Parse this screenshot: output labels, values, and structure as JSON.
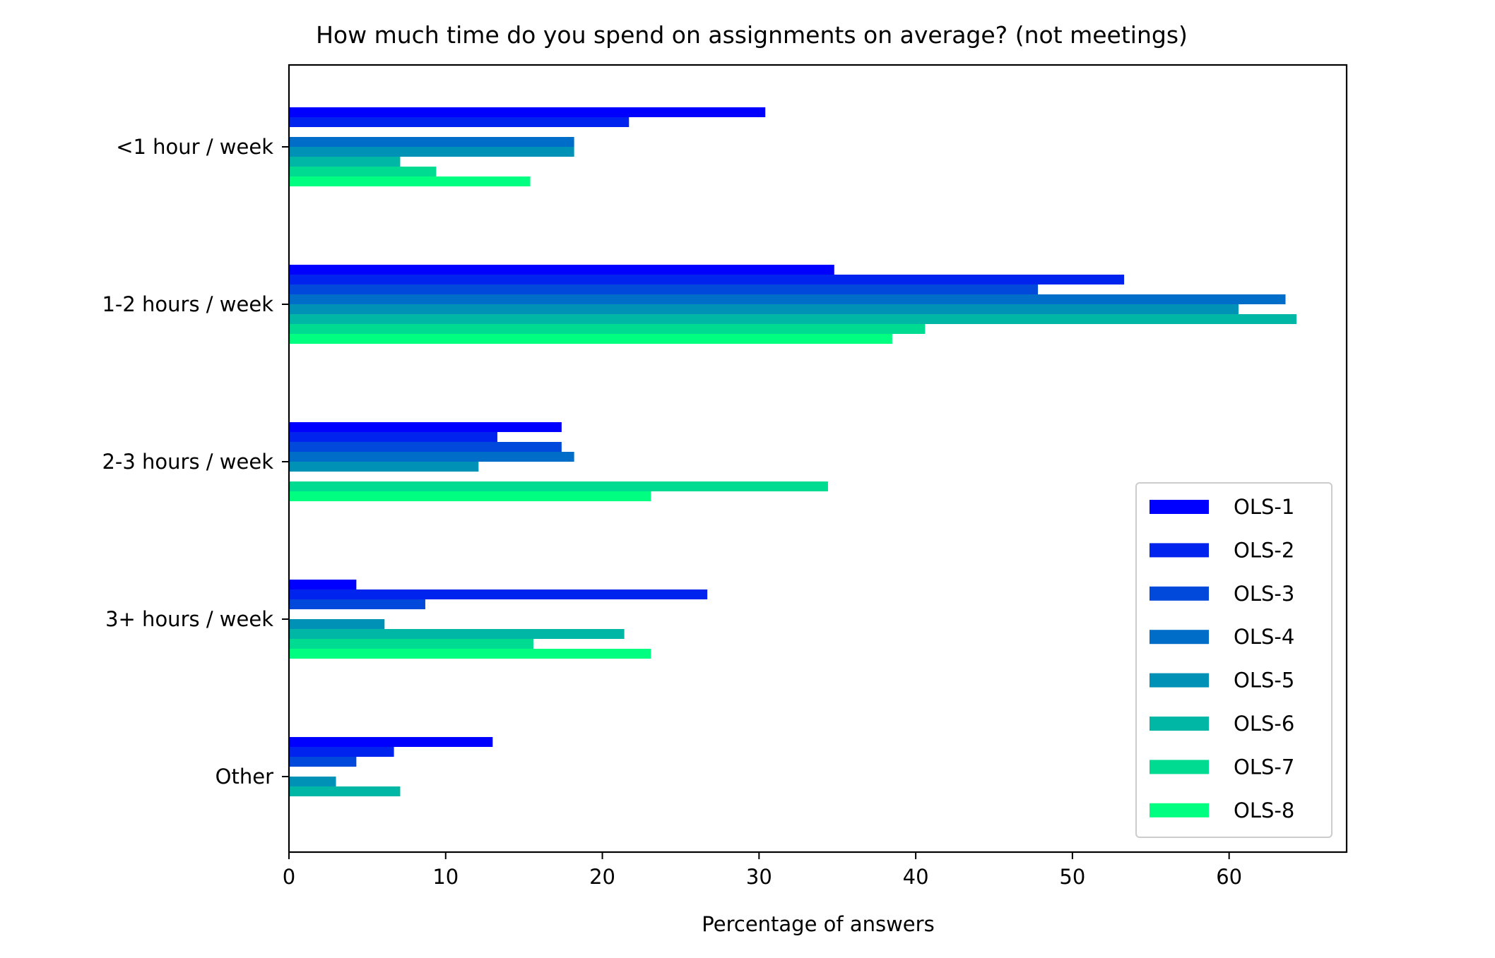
{
  "chart_data": {
    "type": "bar",
    "orientation": "horizontal",
    "title": "How much time do you spend on assignments on average? (not meetings)",
    "xlabel": "Percentage of answers",
    "ylabel": "",
    "xlim": [
      0,
      67.5
    ],
    "xticks": [
      0,
      10,
      20,
      30,
      40,
      50,
      60
    ],
    "categories": [
      "<1 hour / week",
      "1-2 hours / week",
      "2-3 hours / week",
      "3+ hours / week",
      "Other"
    ],
    "series": [
      {
        "name": "OLS-1",
        "color": "#0000ff",
        "values": [
          30.4,
          34.8,
          17.4,
          4.3,
          13.0
        ]
      },
      {
        "name": "OLS-2",
        "color": "#0024ed",
        "values": [
          21.7,
          53.3,
          13.3,
          26.7,
          6.7
        ]
      },
      {
        "name": "OLS-3",
        "color": "#0049db",
        "values": [
          0,
          47.8,
          17.4,
          8.7,
          4.3
        ]
      },
      {
        "name": "OLS-4",
        "color": "#006dc9",
        "values": [
          18.2,
          63.6,
          18.2,
          0,
          0
        ]
      },
      {
        "name": "OLS-5",
        "color": "#0092b6",
        "values": [
          18.2,
          60.6,
          12.1,
          6.1,
          3.0
        ]
      },
      {
        "name": "OLS-6",
        "color": "#00b6a4",
        "values": [
          7.1,
          64.3,
          0,
          21.4,
          7.1
        ]
      },
      {
        "name": "OLS-7",
        "color": "#00db92",
        "values": [
          9.4,
          40.6,
          34.4,
          15.6,
          0
        ]
      },
      {
        "name": "OLS-8",
        "color": "#00ff80",
        "values": [
          15.4,
          38.5,
          23.1,
          23.1,
          0
        ]
      }
    ],
    "legend_position": "lower-right",
    "grid": false
  }
}
